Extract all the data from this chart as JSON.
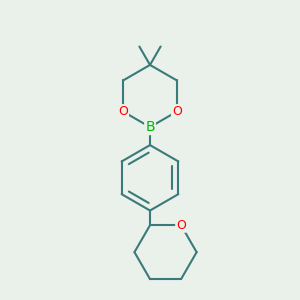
{
  "background_color": "#eaf0ea",
  "bond_color": "#3a7a7a",
  "oxygen_color": "#ff0000",
  "boron_color": "#00bb00",
  "line_width": 1.5,
  "font_size": 10,
  "figsize": [
    3.0,
    3.0
  ],
  "dpi": 100,
  "xlim": [
    0.15,
    0.85
  ],
  "ylim": [
    0.05,
    0.95
  ]
}
